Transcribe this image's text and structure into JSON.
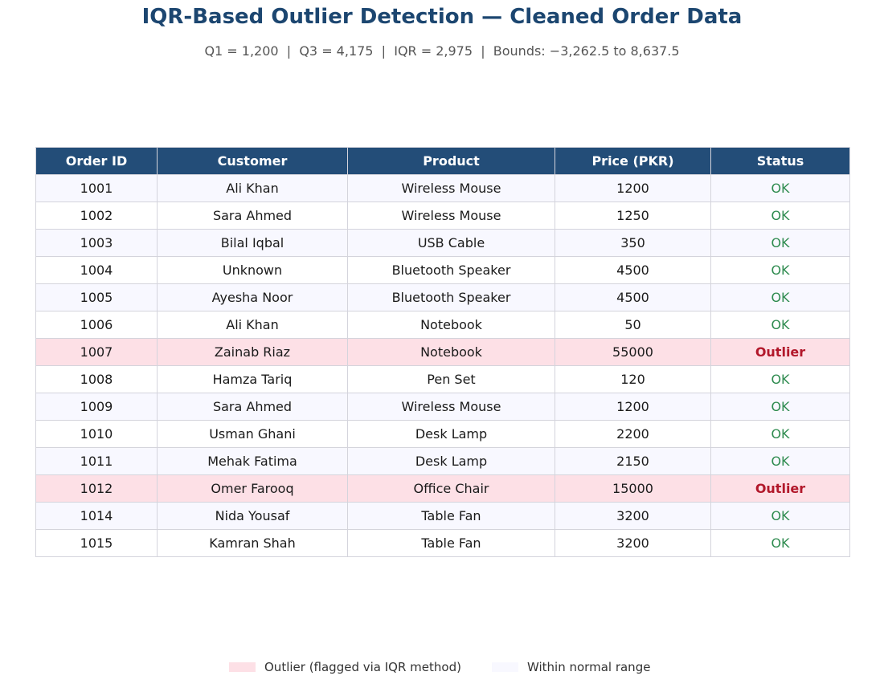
{
  "colors": {
    "title": "#1c4670",
    "header_bg": "#234d78",
    "outlier_bg": "#fde0e6",
    "normal_bg": "#f8f8ff",
    "ok_text": "#2e8b4f",
    "outlier_text": "#b2182b"
  },
  "chart_data": {
    "type": "table",
    "title": "IQR-Based Outlier Detection — Cleaned Order Data",
    "subtitle": "Q1 = 1,200  |  Q3 = 4,175  |  IQR = 2,975  |  Bounds: −3,262.5 to 8,637.5",
    "columns": [
      "Order ID",
      "Customer",
      "Product",
      "Price (PKR)",
      "Status"
    ],
    "rows": [
      {
        "order_id": "1001",
        "customer": "Ali Khan",
        "product": "Wireless Mouse",
        "price": "1200",
        "status": "OK",
        "outlier": false
      },
      {
        "order_id": "1002",
        "customer": "Sara Ahmed",
        "product": "Wireless Mouse",
        "price": "1250",
        "status": "OK",
        "outlier": false
      },
      {
        "order_id": "1003",
        "customer": "Bilal Iqbal",
        "product": "USB Cable",
        "price": "350",
        "status": "OK",
        "outlier": false
      },
      {
        "order_id": "1004",
        "customer": "Unknown",
        "product": "Bluetooth Speaker",
        "price": "4500",
        "status": "OK",
        "outlier": false
      },
      {
        "order_id": "1005",
        "customer": "Ayesha Noor",
        "product": "Bluetooth Speaker",
        "price": "4500",
        "status": "OK",
        "outlier": false
      },
      {
        "order_id": "1006",
        "customer": "Ali Khan",
        "product": "Notebook",
        "price": "50",
        "status": "OK",
        "outlier": false
      },
      {
        "order_id": "1007",
        "customer": "Zainab Riaz",
        "product": "Notebook",
        "price": "55000",
        "status": "Outlier",
        "outlier": true
      },
      {
        "order_id": "1008",
        "customer": "Hamza Tariq",
        "product": "Pen Set",
        "price": "120",
        "status": "OK",
        "outlier": false
      },
      {
        "order_id": "1009",
        "customer": "Sara Ahmed",
        "product": "Wireless Mouse",
        "price": "1200",
        "status": "OK",
        "outlier": false
      },
      {
        "order_id": "1010",
        "customer": "Usman Ghani",
        "product": "Desk Lamp",
        "price": "2200",
        "status": "OK",
        "outlier": false
      },
      {
        "order_id": "1011",
        "customer": "Mehak Fatima",
        "product": "Desk Lamp",
        "price": "2150",
        "status": "OK",
        "outlier": false
      },
      {
        "order_id": "1012",
        "customer": "Omer Farooq",
        "product": "Office Chair",
        "price": "15000",
        "status": "Outlier",
        "outlier": true
      },
      {
        "order_id": "1014",
        "customer": "Nida Yousaf",
        "product": "Table Fan",
        "price": "3200",
        "status": "OK",
        "outlier": false
      },
      {
        "order_id": "1015",
        "customer": "Kamran Shah",
        "product": "Table Fan",
        "price": "3200",
        "status": "OK",
        "outlier": false
      }
    ],
    "legend": {
      "outlier": "Outlier (flagged via IQR method)",
      "normal": "Within normal range"
    }
  }
}
